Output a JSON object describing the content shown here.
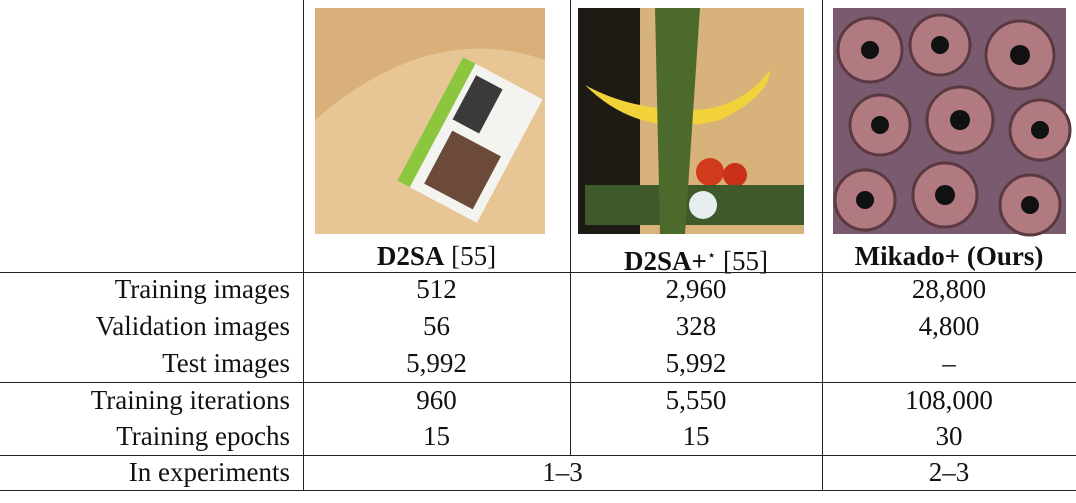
{
  "table": {
    "headers": [
      {
        "name": "D2SA",
        "ref": "[55]"
      },
      {
        "name": "D2SA+",
        "mark": "⋆",
        "ref": "[55]"
      },
      {
        "name": "Mikado+ (Ours)"
      }
    ],
    "rows": [
      {
        "label": "Training images",
        "values": [
          "512",
          "2,960",
          "28,800"
        ]
      },
      {
        "label": "Validation images",
        "values": [
          "56",
          "328",
          "4,800"
        ]
      },
      {
        "label": "Test images",
        "values": [
          "5,992",
          "5,992",
          "–"
        ]
      },
      {
        "label": "Training iterations",
        "values": [
          "960",
          "5,550",
          "108,000"
        ]
      },
      {
        "label": "Training epochs",
        "values": [
          "15",
          "15",
          "30"
        ]
      },
      {
        "label": "In experiments",
        "values": [
          "1–3",
          "2–3"
        ]
      }
    ]
  }
}
